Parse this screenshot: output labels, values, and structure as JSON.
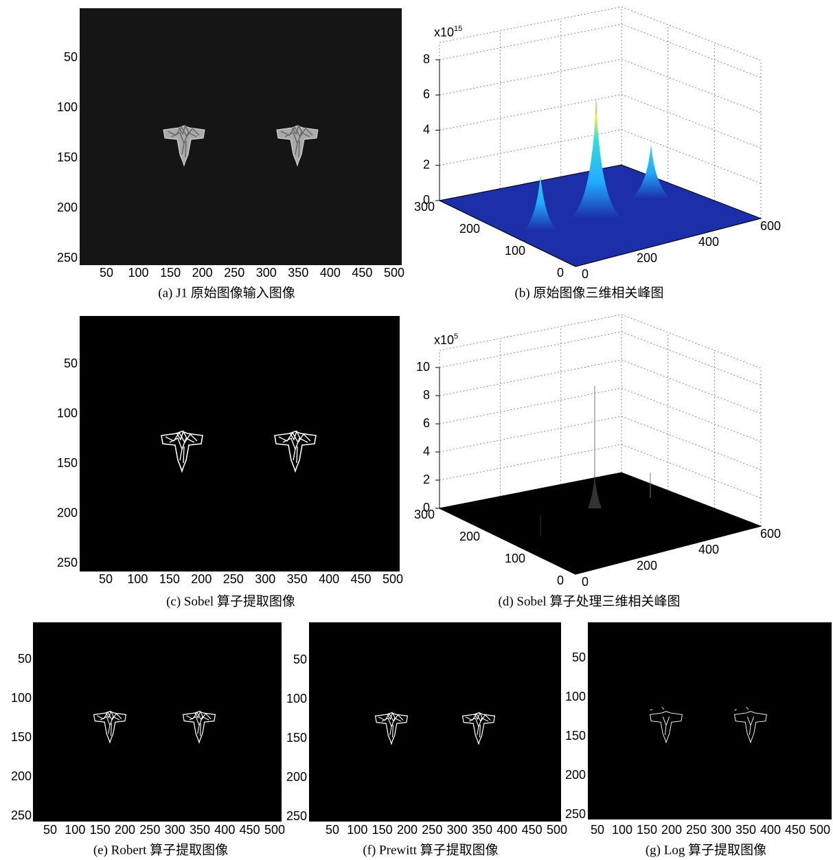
{
  "panels": [
    {
      "caption": "(a) J1 原始图像输入图像",
      "xticks": [
        50,
        100,
        150,
        200,
        250,
        300,
        350,
        400,
        450,
        500
      ],
      "yticks": [
        50,
        100,
        150,
        200,
        250
      ]
    },
    {
      "caption": "(b)  原始图像三维相关峰图",
      "scale": "x10",
      "exponent": "15",
      "zticks": [
        0,
        2,
        4,
        6,
        8
      ],
      "yticks": [
        0,
        100,
        200,
        300
      ],
      "xticks": [
        0,
        200,
        400,
        600
      ]
    },
    {
      "caption": "(c) Sobel 算子提取图像",
      "xticks": [
        50,
        100,
        150,
        200,
        250,
        300,
        350,
        400,
        450,
        500
      ],
      "yticks": [
        50,
        100,
        150,
        200,
        250
      ]
    },
    {
      "caption": "(d) Sobel 算子处理三维相关峰图",
      "scale": "x10",
      "exponent": "5",
      "zticks": [
        0,
        2,
        4,
        6,
        8,
        10
      ],
      "yticks": [
        0,
        100,
        200,
        300
      ],
      "xticks": [
        0,
        200,
        400,
        600
      ]
    },
    {
      "caption": "(e) Robert 算子提取图像",
      "xticks": [
        50,
        100,
        150,
        200,
        250,
        300,
        350,
        400,
        450,
        500
      ],
      "yticks": [
        50,
        100,
        150,
        200,
        250
      ]
    },
    {
      "caption": "(f) Prewitt 算子提取图像",
      "xticks": [
        50,
        100,
        150,
        200,
        250,
        300,
        350,
        400,
        450,
        500
      ],
      "yticks": [
        50,
        100,
        150,
        200,
        250
      ]
    },
    {
      "caption": "(g) Log 算子提取图像",
      "xticks": [
        50,
        100,
        150,
        200,
        250,
        300,
        350,
        400,
        450,
        500
      ],
      "yticks": [
        50,
        100,
        150,
        200,
        250
      ]
    }
  ]
}
